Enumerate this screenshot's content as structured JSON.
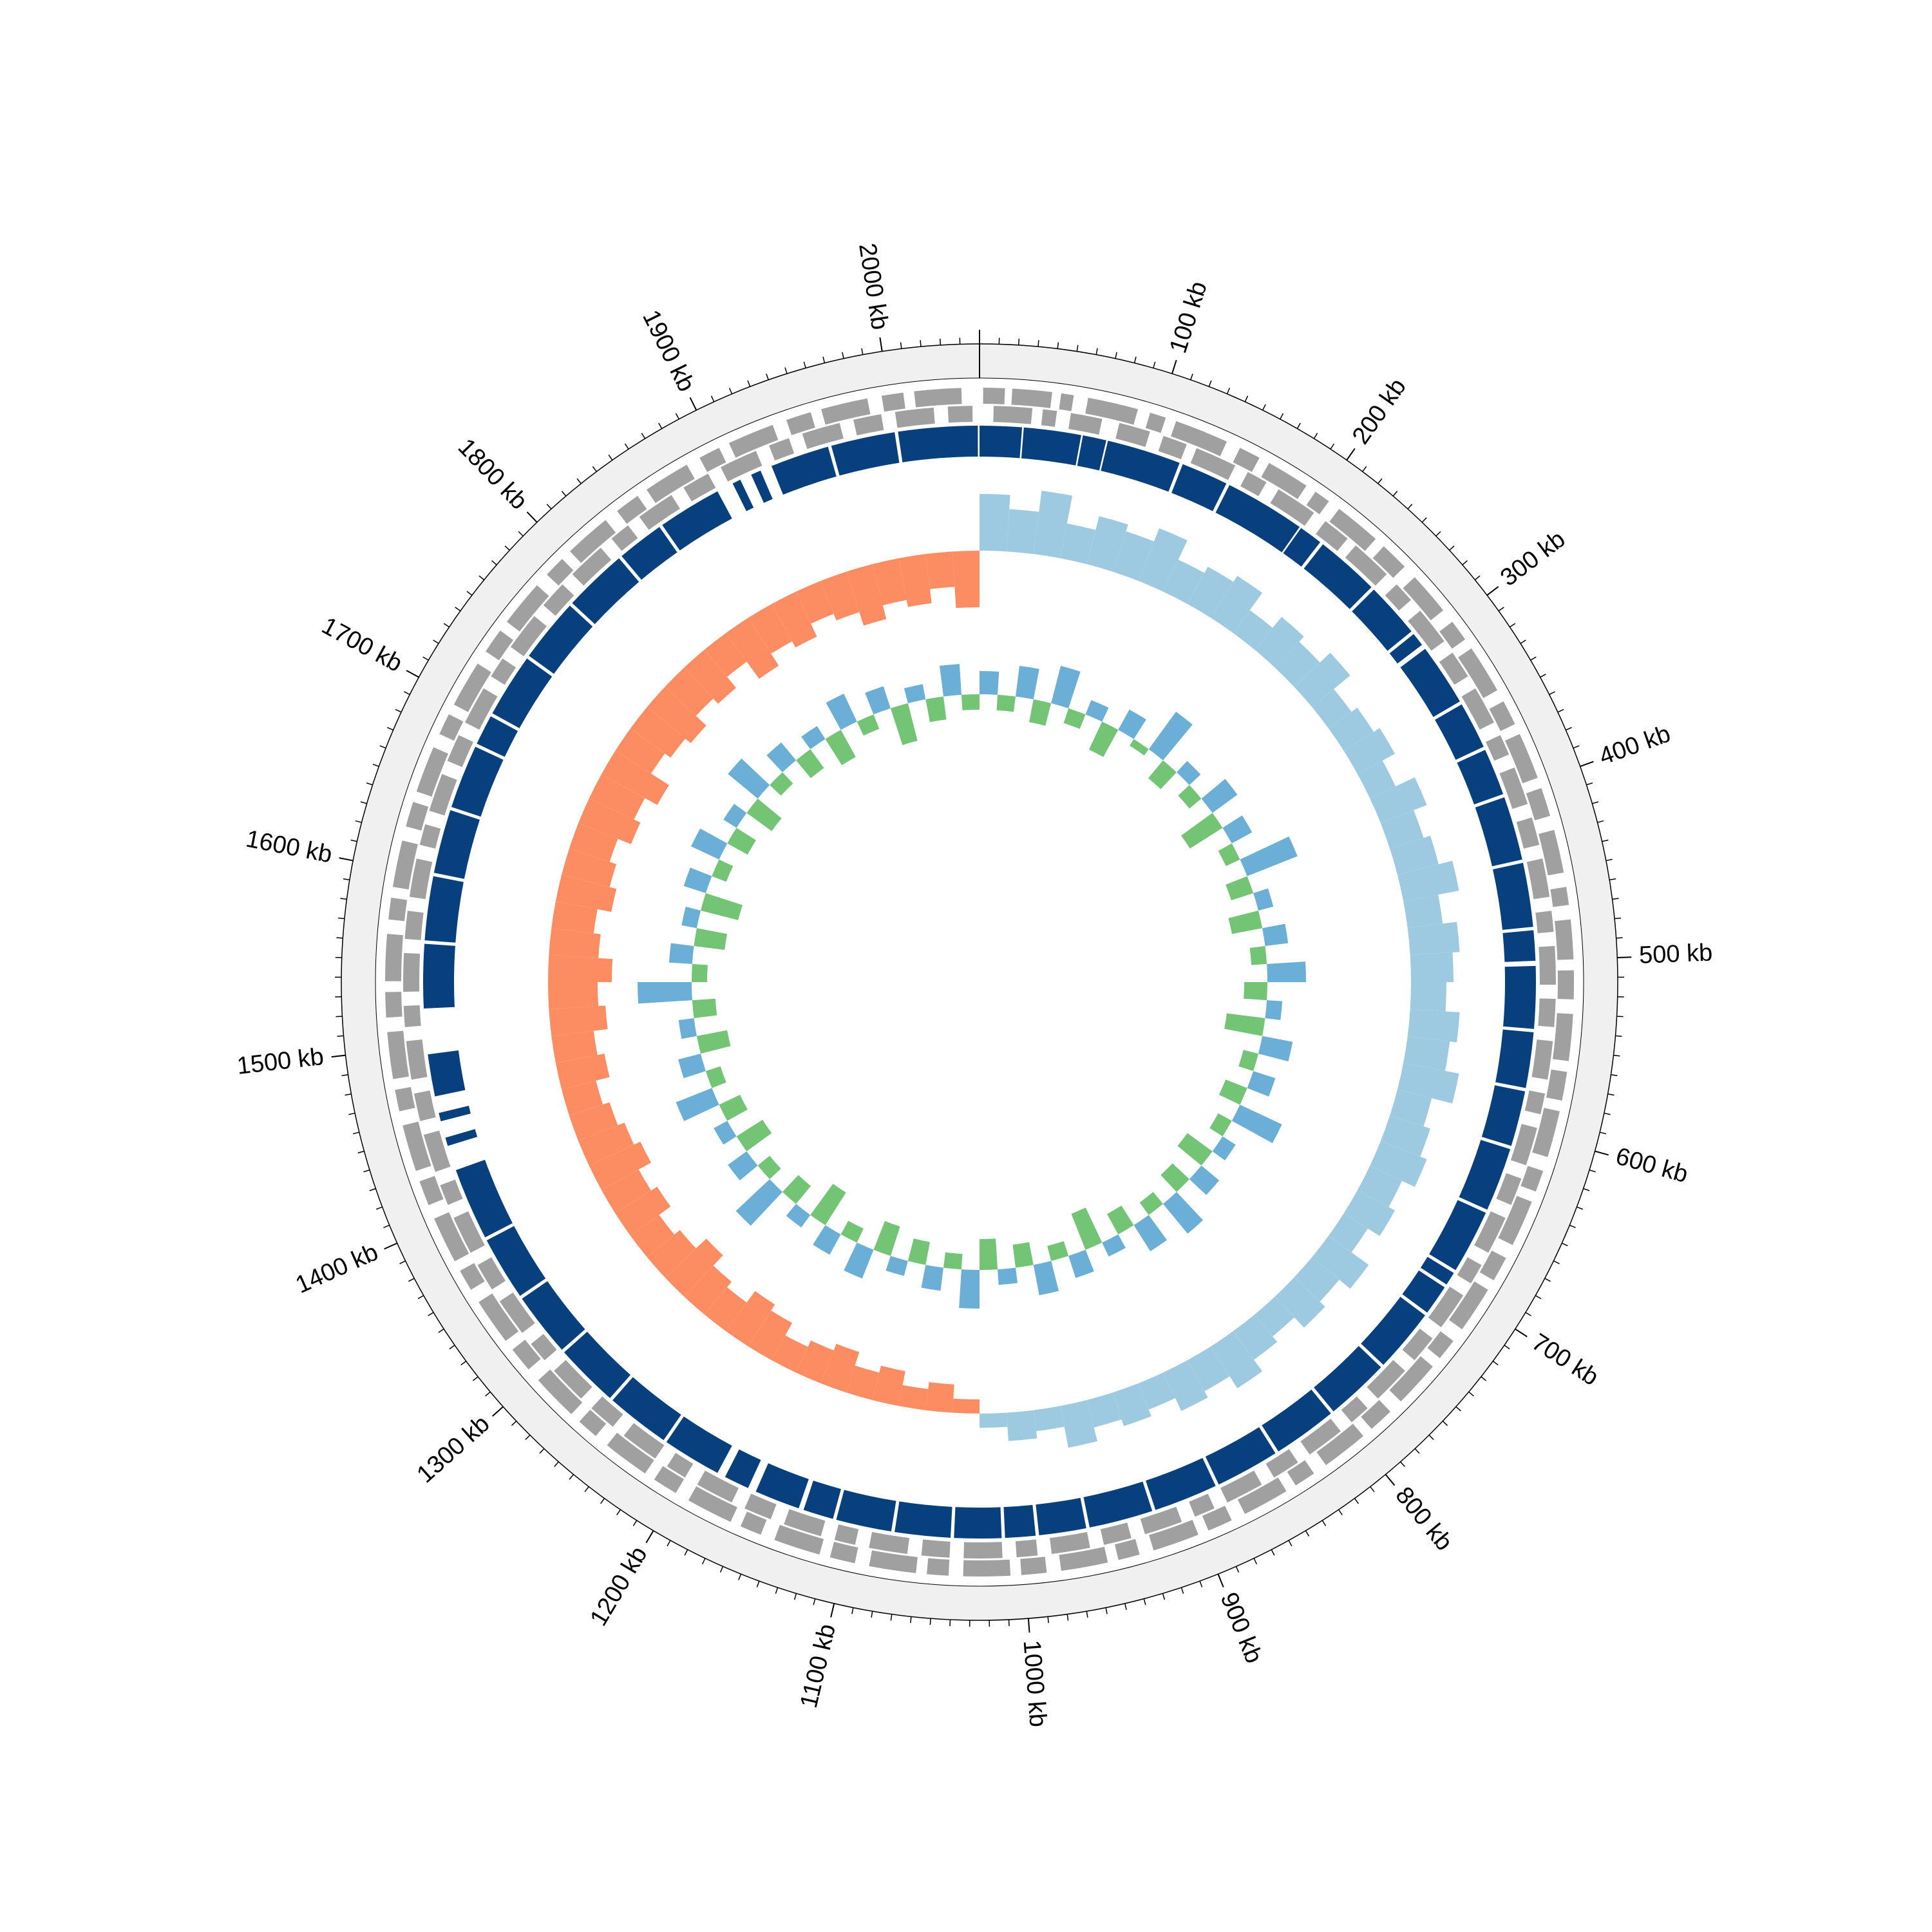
{
  "chart_data": {
    "type": "circular-genome",
    "xlim": [
      0,
      2050
    ],
    "xticks": [
      {
        "value": 100,
        "label": "100 kb"
      },
      {
        "value": 200,
        "label": "200 kb"
      },
      {
        "value": 300,
        "label": "300 kb"
      },
      {
        "value": 400,
        "label": "400 kb"
      },
      {
        "value": 500,
        "label": "500 kb"
      },
      {
        "value": 600,
        "label": "600 kb"
      },
      {
        "value": 700,
        "label": "700 kb"
      },
      {
        "value": 800,
        "label": "800 kb"
      },
      {
        "value": 900,
        "label": "900 kb"
      },
      {
        "value": 1000,
        "label": "1000 kb"
      },
      {
        "value": 1100,
        "label": "1100 kb"
      },
      {
        "value": 1200,
        "label": "1200 kb"
      },
      {
        "value": 1300,
        "label": "1300 kb"
      },
      {
        "value": 1400,
        "label": "1400 kb"
      },
      {
        "value": 1500,
        "label": "1500 kb"
      },
      {
        "value": 1600,
        "label": "1600 kb"
      },
      {
        "value": 1700,
        "label": "1700 kb"
      },
      {
        "value": 1800,
        "label": "1800 kb"
      },
      {
        "value": 1900,
        "label": "1900 kb"
      },
      {
        "value": 2000,
        "label": "2000 kb"
      }
    ],
    "minor_tick_step": 10,
    "ring_color": "#f0f0f0",
    "features_outer": {
      "color": "#a0a0a0",
      "intervals": [
        [
          2,
          14
        ],
        [
          18,
          40
        ],
        [
          45,
          52
        ],
        [
          60,
          88
        ],
        [
          95,
          104
        ],
        [
          110,
          140
        ],
        [
          148,
          160
        ],
        [
          166,
          190
        ],
        [
          196,
          205
        ],
        [
          212,
          238
        ],
        [
          244,
          260
        ],
        [
          268,
          292
        ],
        [
          300,
          312
        ],
        [
          318,
          345
        ],
        [
          352,
          366
        ],
        [
          372,
          398
        ],
        [
          404,
          420
        ],
        [
          428,
          452
        ],
        [
          460,
          470
        ],
        [
          478,
          500
        ],
        [
          506,
          522
        ],
        [
          530,
          556
        ],
        [
          562,
          578
        ],
        [
          584,
          610
        ],
        [
          618,
          630
        ],
        [
          636,
          662
        ],
        [
          670,
          684
        ],
        [
          690,
          716
        ],
        [
          724,
          736
        ],
        [
          742,
          768
        ],
        [
          776,
          790
        ],
        [
          796,
          822
        ],
        [
          830,
          842
        ],
        [
          848,
          874
        ],
        [
          882,
          896
        ],
        [
          902,
          928
        ],
        [
          936,
          948
        ],
        [
          954,
          980
        ],
        [
          988,
          1002
        ],
        [
          1008,
          1034
        ],
        [
          1042,
          1054
        ],
        [
          1060,
          1086
        ],
        [
          1094,
          1108
        ],
        [
          1114,
          1140
        ],
        [
          1148,
          1160
        ],
        [
          1166,
          1192
        ],
        [
          1200,
          1214
        ],
        [
          1220,
          1246
        ],
        [
          1254,
          1266
        ],
        [
          1272,
          1298
        ],
        [
          1306,
          1320
        ],
        [
          1326,
          1352
        ],
        [
          1360,
          1372
        ],
        [
          1378,
          1404
        ],
        [
          1412,
          1426
        ],
        [
          1432,
          1458
        ],
        [
          1466,
          1478
        ],
        [
          1484,
          1510
        ],
        [
          1518,
          1532
        ],
        [
          1538,
          1564
        ],
        [
          1572,
          1584
        ],
        [
          1590,
          1616
        ],
        [
          1624,
          1638
        ],
        [
          1644,
          1670
        ],
        [
          1678,
          1690
        ],
        [
          1696,
          1722
        ],
        [
          1730,
          1744
        ],
        [
          1750,
          1776
        ],
        [
          1784,
          1796
        ],
        [
          1802,
          1828
        ],
        [
          1836,
          1850
        ],
        [
          1856,
          1882
        ],
        [
          1890,
          1902
        ],
        [
          1908,
          1934
        ],
        [
          1942,
          1956
        ],
        [
          1962,
          1988
        ],
        [
          1996,
          2008
        ],
        [
          2014,
          2040
        ]
      ]
    },
    "features_inner": {
      "color": "#a0a0a0",
      "intervals": [
        [
          8,
          30
        ],
        [
          36,
          44
        ],
        [
          52,
          70
        ],
        [
          80,
          98
        ],
        [
          106,
          120
        ],
        [
          126,
          150
        ],
        [
          158,
          170
        ],
        [
          178,
          202
        ],
        [
          210,
          226
        ],
        [
          232,
          256
        ],
        [
          264,
          276
        ],
        [
          284,
          306
        ],
        [
          314,
          330
        ],
        [
          338,
          360
        ],
        [
          368,
          380
        ],
        [
          388,
          410
        ],
        [
          418,
          434
        ],
        [
          442,
          464
        ],
        [
          472,
          484
        ],
        [
          492,
          514
        ],
        [
          522,
          538
        ],
        [
          546,
          568
        ],
        [
          576,
          588
        ],
        [
          596,
          618
        ],
        [
          626,
          642
        ],
        [
          650,
          672
        ],
        [
          680,
          692
        ],
        [
          700,
          722
        ],
        [
          730,
          746
        ],
        [
          754,
          776
        ],
        [
          784,
          796
        ],
        [
          804,
          826
        ],
        [
          834,
          850
        ],
        [
          858,
          880
        ],
        [
          888,
          900
        ],
        [
          908,
          930
        ],
        [
          938,
          954
        ],
        [
          962,
          984
        ],
        [
          992,
          1004
        ],
        [
          1012,
          1034
        ],
        [
          1042,
          1058
        ],
        [
          1066,
          1088
        ],
        [
          1096,
          1108
        ],
        [
          1116,
          1138
        ],
        [
          1146,
          1162
        ],
        [
          1170,
          1192
        ],
        [
          1200,
          1212
        ],
        [
          1220,
          1242
        ],
        [
          1250,
          1266
        ],
        [
          1274,
          1296
        ],
        [
          1304,
          1316
        ],
        [
          1324,
          1346
        ],
        [
          1354,
          1370
        ],
        [
          1378,
          1400
        ],
        [
          1408,
          1420
        ],
        [
          1428,
          1450
        ],
        [
          1458,
          1474
        ],
        [
          1482,
          1504
        ],
        [
          1512,
          1524
        ],
        [
          1532,
          1554
        ],
        [
          1562,
          1578
        ],
        [
          1586,
          1608
        ],
        [
          1616,
          1628
        ],
        [
          1636,
          1658
        ],
        [
          1666,
          1682
        ],
        [
          1690,
          1712
        ],
        [
          1720,
          1732
        ],
        [
          1740,
          1762
        ],
        [
          1770,
          1786
        ],
        [
          1794,
          1816
        ],
        [
          1824,
          1836
        ],
        [
          1844,
          1866
        ],
        [
          1874,
          1890
        ],
        [
          1898,
          1920
        ],
        [
          1928,
          1940
        ],
        [
          1948,
          1970
        ],
        [
          1978,
          1994
        ],
        [
          2002,
          2024
        ],
        [
          2032,
          2046
        ]
      ]
    },
    "cds": {
      "color": "#08407e",
      "intervals": [
        [
          0,
          25
        ],
        [
          26,
          60
        ],
        [
          61,
          75
        ],
        [
          76,
          120
        ],
        [
          122,
          150
        ],
        [
          152,
          200
        ],
        [
          201,
          215
        ],
        [
          217,
          255
        ],
        [
          257,
          290
        ],
        [
          292,
          300
        ],
        [
          303,
          340
        ],
        [
          342,
          370
        ],
        [
          372,
          400
        ],
        [
          402,
          440
        ],
        [
          442,
          480
        ],
        [
          482,
          500
        ],
        [
          503,
          540
        ],
        [
          542,
          575
        ],
        [
          577,
          610
        ],
        [
          612,
          650
        ],
        [
          652,
          690
        ],
        [
          692,
          700
        ],
        [
          702,
          720
        ],
        [
          722,
          760
        ],
        [
          762,
          800
        ],
        [
          802,
          840
        ],
        [
          842,
          880
        ],
        [
          882,
          920
        ],
        [
          922,
          960
        ],
        [
          962,
          990
        ],
        [
          992,
          1010
        ],
        [
          1012,
          1040
        ],
        [
          1042,
          1075
        ],
        [
          1077,
          1110
        ],
        [
          1112,
          1130
        ],
        [
          1133,
          1160
        ],
        [
          1165,
          1180
        ],
        [
          1185,
          1220
        ],
        [
          1222,
          1260
        ],
        [
          1262,
          1300
        ],
        [
          1302,
          1340
        ],
        [
          1342,
          1380
        ],
        [
          1382,
          1425
        ],
        [
          1440,
          1445
        ],
        [
          1455,
          1460
        ],
        [
          1470,
          1495
        ],
        [
          1522,
          1560
        ],
        [
          1562,
          1600
        ],
        [
          1602,
          1640
        ],
        [
          1642,
          1680
        ],
        [
          1682,
          1700
        ],
        [
          1702,
          1740
        ],
        [
          1742,
          1780
        ],
        [
          1782,
          1820
        ],
        [
          1822,
          1850
        ],
        [
          1852,
          1890
        ],
        [
          1900,
          1905
        ],
        [
          1912,
          1918
        ],
        [
          1925,
          1960
        ],
        [
          1962,
          2000
        ],
        [
          2002,
          2049
        ]
      ]
    },
    "gc_skew": {
      "positive_color": "#9ecae1",
      "negative_color": "#fc8d62",
      "ylim": [
        -0.1,
        0.1
      ],
      "values": [
        0.08,
        0.06,
        0.09,
        0.05,
        0.07,
        0.06,
        0.08,
        0.05,
        0.06,
        0.07,
        0.04,
        0.06,
        0.05,
        0.07,
        0.04,
        0.05,
        0.06,
        0.04,
        0.07,
        0.05,
        0.06,
        0.08,
        0.05,
        0.07,
        0.06,
        0.05,
        0.07,
        0.06,
        0.08,
        0.05,
        0.06,
        0.07,
        0.05,
        0.06,
        0.04,
        0.07,
        0.05,
        0.06,
        0.04,
        0.05,
        0.07,
        0.05,
        0.06,
        0.04,
        0.05,
        0.04,
        0.06,
        0.03,
        0.04,
        0.02,
        -0.02,
        -0.04,
        -0.03,
        -0.05,
        -0.04,
        -0.06,
        -0.05,
        -0.04,
        -0.06,
        -0.07,
        -0.05,
        -0.06,
        -0.08,
        -0.06,
        -0.05,
        -0.07,
        -0.06,
        -0.08,
        -0.07,
        -0.06,
        -0.05,
        -0.07,
        -0.06,
        -0.08,
        -0.07,
        -0.09,
        -0.07,
        -0.06,
        -0.08,
        -0.07,
        -0.06,
        -0.08,
        -0.07,
        -0.09,
        -0.06,
        -0.07,
        -0.08,
        -0.06,
        -0.07,
        -0.05,
        -0.08,
        -0.06,
        -0.07,
        -0.05,
        -0.06,
        -0.08,
        -0.06,
        -0.07,
        -0.05,
        -0.08
      ]
    },
    "gc_content": {
      "positive_color": "#6baed6",
      "negative_color": "#74c476",
      "ylim": [
        -0.1,
        0.1
      ],
      "values": [
        0.03,
        -0.02,
        0.04,
        -0.03,
        0.05,
        -0.02,
        0.02,
        -0.04,
        0.03,
        -0.01,
        0.06,
        -0.03,
        0.02,
        -0.02,
        0.04,
        -0.05,
        0.03,
        -0.02,
        0.07,
        -0.03,
        0.02,
        -0.04,
        0.03,
        -0.02,
        0.05,
        -0.03,
        0.02,
        -0.05,
        0.04,
        -0.02,
        0.03,
        -0.03,
        0.06,
        -0.02,
        0.02,
        -0.04,
        0.03,
        -0.03,
        0.05,
        -0.02,
        0.04,
        -0.03,
        0.02,
        -0.05,
        0.03,
        -0.02,
        0.04,
        -0.03,
        0.02,
        -0.04,
        0.05,
        -0.02,
        0.03,
        -0.03,
        0.02,
        -0.04,
        0.04,
        -0.02,
        0.03,
        -0.05,
        0.02,
        -0.03,
        0.06,
        -0.02,
        0.03,
        -0.04,
        0.02,
        -0.03,
        0.05,
        -0.02,
        0.03,
        -0.04,
        0.02,
        -0.03,
        0.07,
        -0.02,
        0.03,
        -0.04,
        0.02,
        -0.05,
        0.03,
        -0.02,
        0.04,
        -0.03,
        0.02,
        -0.04,
        0.05,
        -0.02,
        0.03,
        -0.03,
        0.02,
        -0.04,
        0.04,
        -0.02,
        0.03,
        -0.05,
        0.02,
        -0.03,
        0.04,
        -0.02
      ]
    }
  }
}
